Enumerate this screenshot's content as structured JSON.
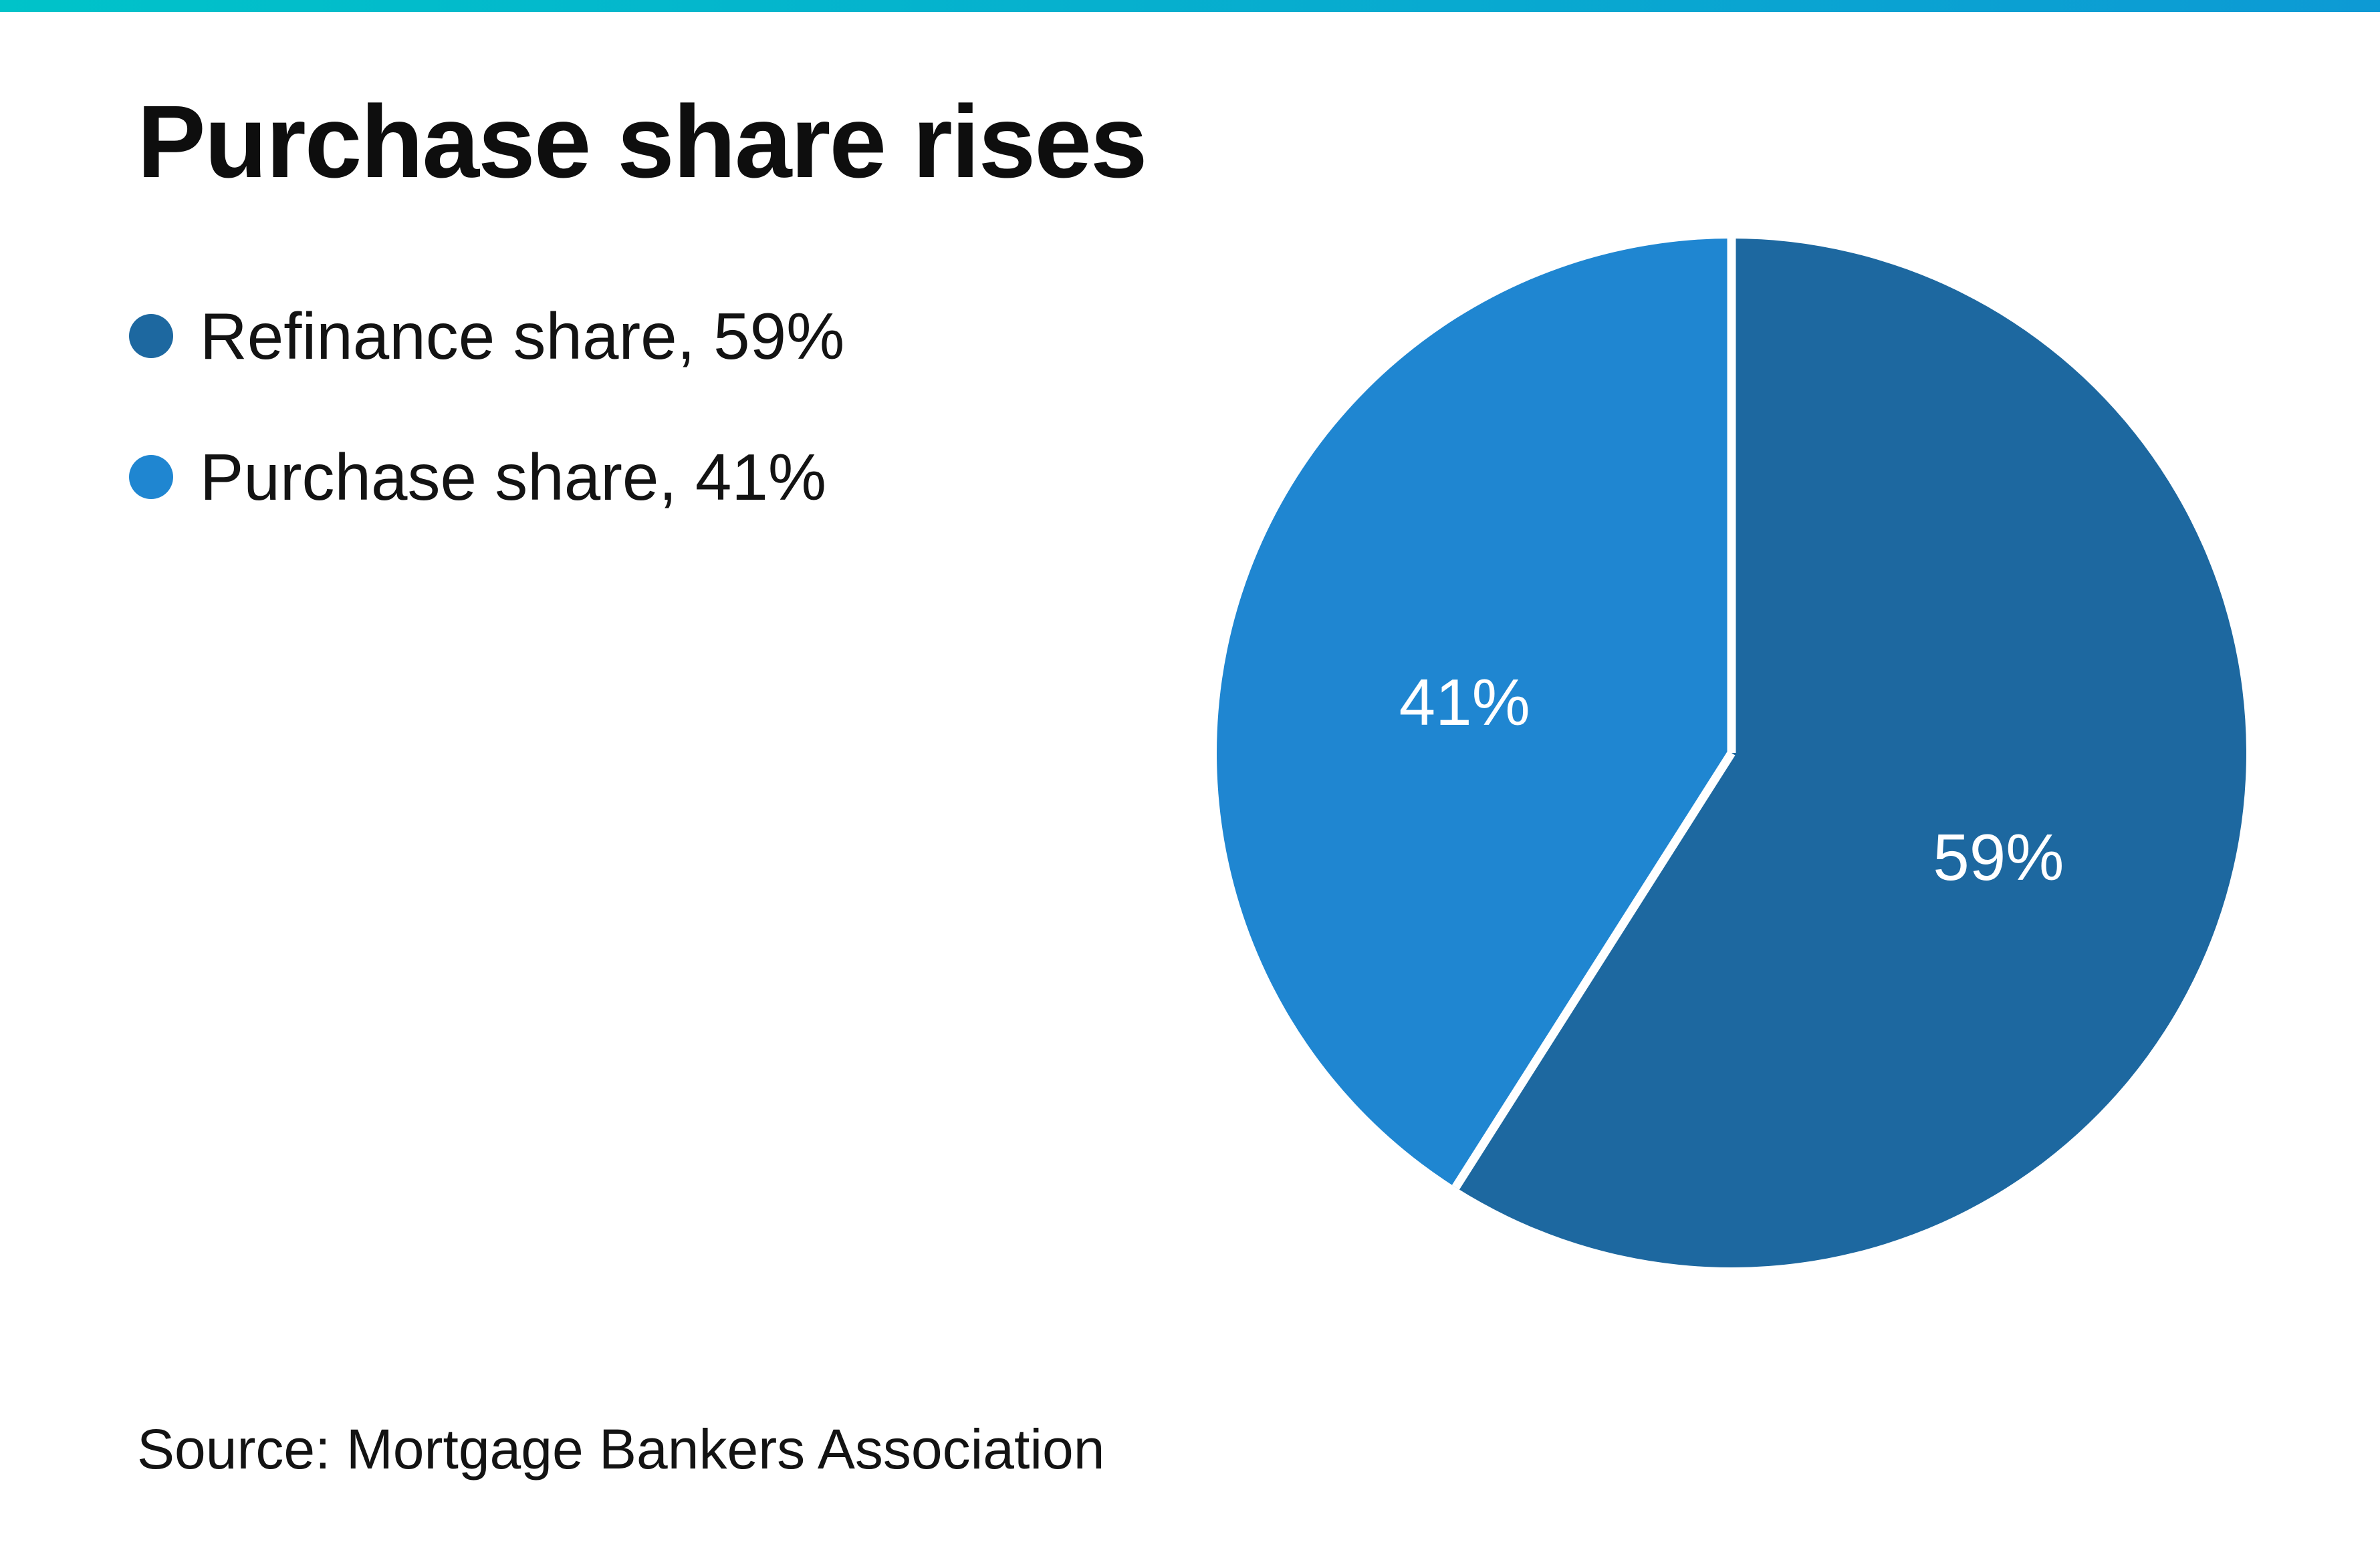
{
  "top_bar": {
    "gradient_left": "#00c3c9",
    "gradient_right": "#0d9ad4"
  },
  "header": {
    "title": "Purchase share rises"
  },
  "legend": {
    "position": "left",
    "items": [
      {
        "label": "Refinance share, 59%",
        "color": "#1d68a0"
      },
      {
        "label": "Purchase share, 41%",
        "color": "#1f86d1"
      }
    ]
  },
  "chart_data": {
    "type": "pie",
    "title": "Purchase share rises",
    "categories": [
      "Refinance share",
      "Purchase share"
    ],
    "values": [
      59,
      41
    ],
    "unit": "%",
    "colors": [
      "#1d68a0",
      "#1f86d1"
    ],
    "slice_labels": [
      "59%",
      "41%"
    ],
    "start_angle_deg": 0,
    "direction": "clockwise",
    "divider_color": "#ffffff",
    "label_color": "#ffffff",
    "legend_position": "left",
    "background": "#ffffff"
  },
  "footer": {
    "source": "Source: Mortgage Bankers Association"
  }
}
